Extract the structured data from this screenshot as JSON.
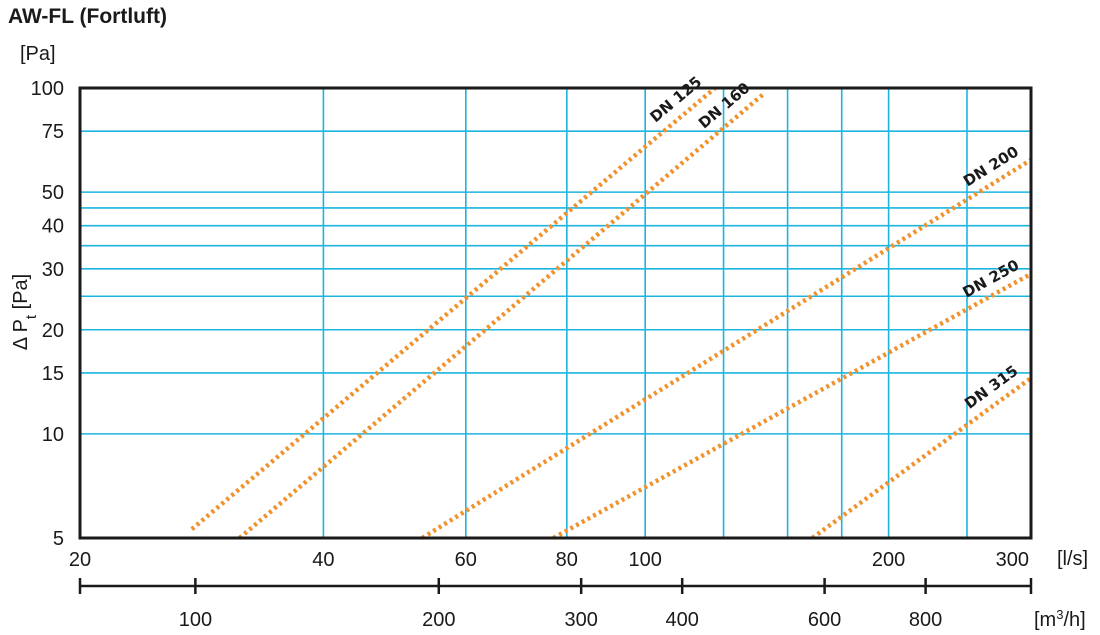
{
  "chart_data": {
    "type": "line",
    "title": "AW-FL (Fortluft)",
    "ylabel_unit": "[Pa]",
    "ylabel": "Δ P",
    "ylabel_sub": "t",
    "ylabel_suffix": " [Pa]",
    "xlabel_unit": "[l/s]",
    "x2label_unit_base": "[m",
    "x2label_unit_sup": "3",
    "x2label_unit_end": "/h]",
    "x_scale": "log",
    "y_scale": "log",
    "xlim": [
      20,
      300
    ],
    "ylim": [
      5,
      100
    ],
    "x_ticks": [
      20,
      40,
      60,
      80,
      100,
      200,
      300
    ],
    "x_minor_gridlines": [
      125,
      150,
      175,
      250
    ],
    "y_ticks": [
      5,
      10,
      15,
      20,
      30,
      40,
      50,
      75,
      100
    ],
    "y_minor_gridlines": [
      25,
      35,
      45
    ],
    "x2_ticks": [
      100,
      200,
      300,
      400,
      600,
      800
    ],
    "x2_conversion": "m3/h = l/s × 3.6",
    "grid": true,
    "grid_color": "#1cb5e0",
    "series_color": "#f0922e",
    "series": [
      {
        "name": "DN 125",
        "x": [
          27.5,
          122
        ],
        "y": [
          5.3,
          100
        ]
      },
      {
        "name": "DN 160",
        "x": [
          31.5,
          140
        ],
        "y": [
          5.0,
          96
        ]
      },
      {
        "name": "DN 200",
        "x": [
          53,
          300
        ],
        "y": [
          5.0,
          62
        ]
      },
      {
        "name": "DN 250",
        "x": [
          77,
          300
        ],
        "y": [
          5.0,
          29
        ]
      },
      {
        "name": "DN 315",
        "x": [
          161,
          300
        ],
        "y": [
          5.0,
          14.5
        ]
      }
    ]
  }
}
